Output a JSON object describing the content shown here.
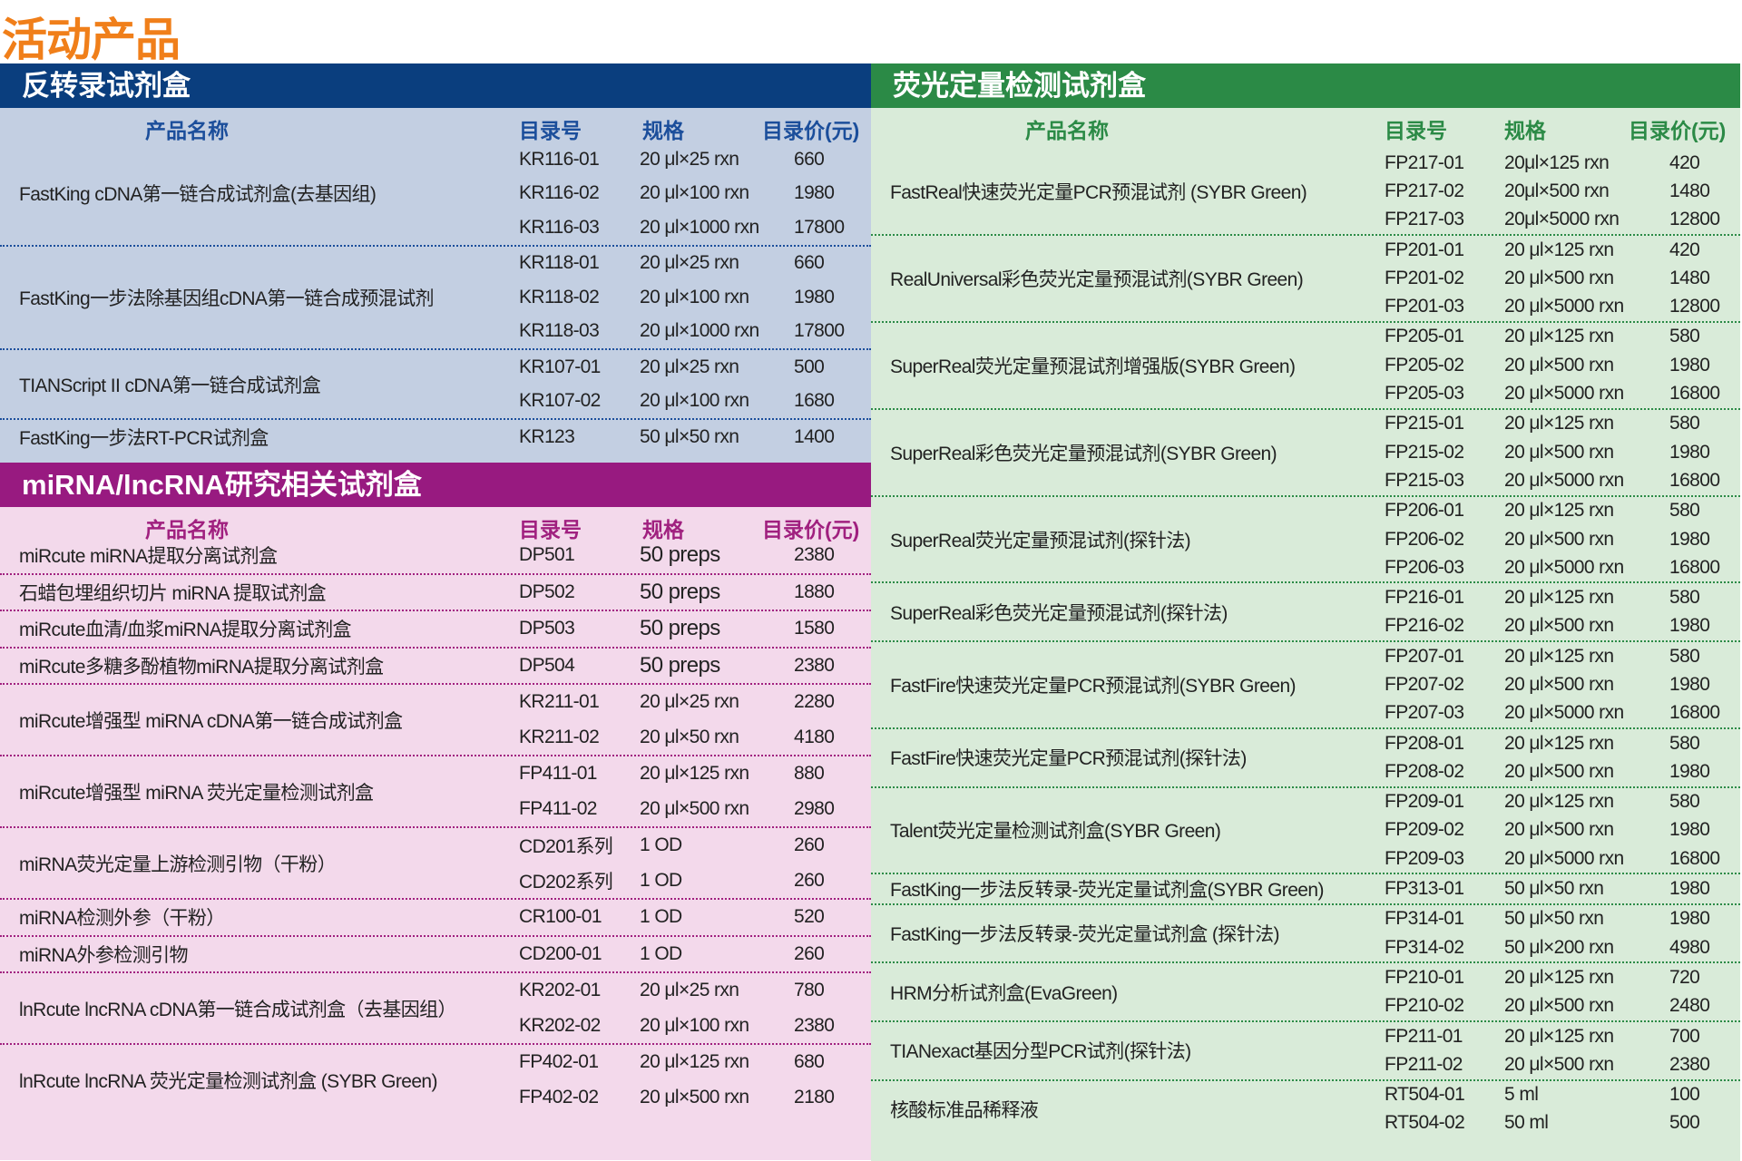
{
  "page_title": "活动产品",
  "colors": {
    "title": "#f07f1a",
    "rt_header": "#0a3e7e",
    "rt_bg": "#c3cfe2",
    "rt_text": "#1b4e9b",
    "mi_header": "#981a80",
    "mi_bg": "#f3d9eb",
    "mi_text": "#a0207f",
    "qp_header": "#2b8a46",
    "qp_bg": "#d9ebd9",
    "qp_text": "#2b8a46"
  },
  "sections": [
    {
      "title": "反转录试剂盒",
      "columns": [
        "产品名称",
        "目录号",
        "规格",
        "目录价(元)"
      ],
      "products": [
        {
          "name": "FastKing cDNA第一链合成试剂盒(去基因组)",
          "items": [
            [
              "KR116-01",
              "20 μl×25 rxn",
              "660"
            ],
            [
              "KR116-02",
              "20 μl×100 rxn",
              "1980"
            ],
            [
              "KR116-03",
              "20 μl×1000 rxn",
              "17800"
            ]
          ]
        },
        {
          "name": "FastKing一步法除基因组cDNA第一链合成预混试剂",
          "items": [
            [
              "KR118-01",
              "20 μl×25 rxn",
              "660"
            ],
            [
              "KR118-02",
              "20 μl×100 rxn",
              "1980"
            ],
            [
              "KR118-03",
              "20 μl×1000 rxn",
              "17800"
            ]
          ]
        },
        {
          "name": "TIANScript II  cDNA第一链合成试剂盒",
          "items": [
            [
              "KR107-01",
              "20 μl×25 rxn",
              "500"
            ],
            [
              "KR107-02",
              "20 μl×100 rxn",
              "1680"
            ]
          ]
        },
        {
          "name": "FastKing一步法RT-PCR试剂盒",
          "items": [
            [
              "KR123",
              "50 μl×50 rxn",
              "1400"
            ]
          ]
        }
      ]
    },
    {
      "title": "miRNA/lncRNA研究相关试剂盒",
      "columns": [
        "产品名称",
        "目录号",
        "规格",
        "目录价(元)"
      ],
      "products": [
        {
          "name": "miRcute miRNA提取分离试剂盒",
          "items": [
            [
              "DP501",
              "50 preps",
              "2380"
            ]
          ]
        },
        {
          "name": "石蜡包埋组织切片 miRNA 提取试剂盒",
          "items": [
            [
              "DP502",
              "50 preps",
              "1880"
            ]
          ]
        },
        {
          "name": "miRcute血清/血浆miRNA提取分离试剂盒",
          "items": [
            [
              "DP503",
              "50 preps",
              "1580"
            ]
          ]
        },
        {
          "name": "miRcute多糖多酚植物miRNA提取分离试剂盒",
          "items": [
            [
              "DP504",
              "50 preps",
              "2380"
            ]
          ]
        },
        {
          "name": "miRcute增强型 miRNA cDNA第一链合成试剂盒",
          "items": [
            [
              "KR211-01",
              "20 μl×25 rxn",
              "2280"
            ],
            [
              "KR211-02",
              "20 μl×50 rxn",
              "4180"
            ]
          ]
        },
        {
          "name": "miRcute增强型 miRNA 荧光定量检测试剂盒",
          "items": [
            [
              "FP411-01",
              "20 μl×125 rxn",
              "880"
            ],
            [
              "FP411-02",
              "20 μl×500 rxn",
              "2980"
            ]
          ]
        },
        {
          "name": "miRNA荧光定量上游检测引物（干粉）",
          "items": [
            [
              "CD201系列",
              "1 OD",
              "260"
            ],
            [
              "CD202系列",
              "1 OD",
              "260"
            ]
          ]
        },
        {
          "name": "miRNA检测外参（干粉）",
          "items": [
            [
              "CR100-01",
              "1 OD",
              "520"
            ]
          ]
        },
        {
          "name": "miRNA外参检测引物",
          "items": [
            [
              "CD200-01",
              "1 OD",
              "260"
            ]
          ]
        },
        {
          "name": "lnRcute lncRNA cDNA第一链合成试剂盒（去基因组）",
          "items": [
            [
              "KR202-01",
              "20 μl×25 rxn",
              "780"
            ],
            [
              "KR202-02",
              "20 μl×100 rxn",
              "2380"
            ]
          ]
        },
        {
          "name": "lnRcute lncRNA 荧光定量检测试剂盒 (SYBR Green)",
          "items": [
            [
              "FP402-01",
              "20 μl×125 rxn",
              "680"
            ],
            [
              "FP402-02",
              "20 μl×500 rxn",
              "2180"
            ]
          ]
        }
      ]
    },
    {
      "title": "荧光定量检测试剂盒",
      "columns": [
        "产品名称",
        "目录号",
        "规格",
        "目录价(元)"
      ],
      "products": [
        {
          "name": "FastReal快速荧光定量PCR预混试剂 (SYBR Green)",
          "items": [
            [
              "FP217-01",
              "20μl×125 rxn",
              "420"
            ],
            [
              "FP217-02",
              "20μl×500 rxn",
              "1480"
            ],
            [
              "FP217-03",
              "20μl×5000 rxn",
              "12800"
            ]
          ]
        },
        {
          "name": "RealUniversal彩色荧光定量预混试剂(SYBR Green)",
          "items": [
            [
              "FP201-01",
              "20 μl×125 rxn",
              "420"
            ],
            [
              "FP201-02",
              "20 μl×500 rxn",
              "1480"
            ],
            [
              "FP201-03",
              "20 μl×5000 rxn",
              "12800"
            ]
          ]
        },
        {
          "name": "SuperReal荧光定量预混试剂增强版(SYBR Green)",
          "items": [
            [
              "FP205-01",
              "20 μl×125 rxn",
              "580"
            ],
            [
              "FP205-02",
              "20 μl×500 rxn",
              "1980"
            ],
            [
              "FP205-03",
              "20 μl×5000 rxn",
              "16800"
            ]
          ]
        },
        {
          "name": "SuperReal彩色荧光定量预混试剂(SYBR Green)",
          "items": [
            [
              "FP215-01",
              "20 μl×125 rxn",
              "580"
            ],
            [
              "FP215-02",
              "20 μl×500 rxn",
              "1980"
            ],
            [
              "FP215-03",
              "20 μl×5000 rxn",
              "16800"
            ]
          ]
        },
        {
          "name": "SuperReal荧光定量预混试剂(探针法)",
          "items": [
            [
              "FP206-01",
              "20 μl×125 rxn",
              "580"
            ],
            [
              "FP206-02",
              "20 μl×500 rxn",
              "1980"
            ],
            [
              "FP206-03",
              "20 μl×5000 rxn",
              "16800"
            ]
          ]
        },
        {
          "name": "SuperReal彩色荧光定量预混试剂(探针法)",
          "items": [
            [
              "FP216-01",
              "20 μl×125 rxn",
              "580"
            ],
            [
              "FP216-02",
              "20 μl×500 rxn",
              "1980"
            ]
          ]
        },
        {
          "name": "FastFire快速荧光定量PCR预混试剂(SYBR Green)",
          "items": [
            [
              "FP207-01",
              "20 μl×125 rxn",
              "580"
            ],
            [
              "FP207-02",
              "20 μl×500 rxn",
              "1980"
            ],
            [
              "FP207-03",
              "20 μl×5000 rxn",
              "16800"
            ]
          ]
        },
        {
          "name": "FastFire快速荧光定量PCR预混试剂(探针法)",
          "items": [
            [
              "FP208-01",
              "20 μl×125 rxn",
              "580"
            ],
            [
              "FP208-02",
              "20 μl×500 rxn",
              "1980"
            ]
          ]
        },
        {
          "name": "Talent荧光定量检测试剂盒(SYBR Green)",
          "items": [
            [
              "FP209-01",
              "20 μl×125 rxn",
              "580"
            ],
            [
              "FP209-02",
              "20 μl×500 rxn",
              "1980"
            ],
            [
              "FP209-03",
              "20 μl×5000 rxn",
              "16800"
            ]
          ]
        },
        {
          "name": "FastKing一步法反转录-荧光定量试剂盒(SYBR Green)",
          "items": [
            [
              "FP313-01",
              "50 μl×50 rxn",
              "1980"
            ]
          ]
        },
        {
          "name": "FastKing一步法反转录-荧光定量试剂盒 (探针法)",
          "items": [
            [
              "FP314-01",
              "50 μl×50 rxn",
              "1980"
            ],
            [
              "FP314-02",
              "50 μl×200 rxn",
              "4980"
            ]
          ]
        },
        {
          "name": "HRM分析试剂盒(EvaGreen)",
          "items": [
            [
              "FP210-01",
              "20 μl×125 rxn",
              "720"
            ],
            [
              "FP210-02",
              "20 μl×500 rxn",
              "2480"
            ]
          ]
        },
        {
          "name": "TIANexact基因分型PCR试剂(探针法)",
          "items": [
            [
              "FP211-01",
              "20 μl×125 rxn",
              "700"
            ],
            [
              "FP211-02",
              "20 μl×500 rxn",
              "2380"
            ]
          ]
        },
        {
          "name": "核酸标准品稀释液",
          "items": [
            [
              "RT504-01",
              "5 ml",
              "100"
            ],
            [
              "RT504-02",
              "50 ml",
              "500"
            ]
          ]
        }
      ]
    }
  ]
}
